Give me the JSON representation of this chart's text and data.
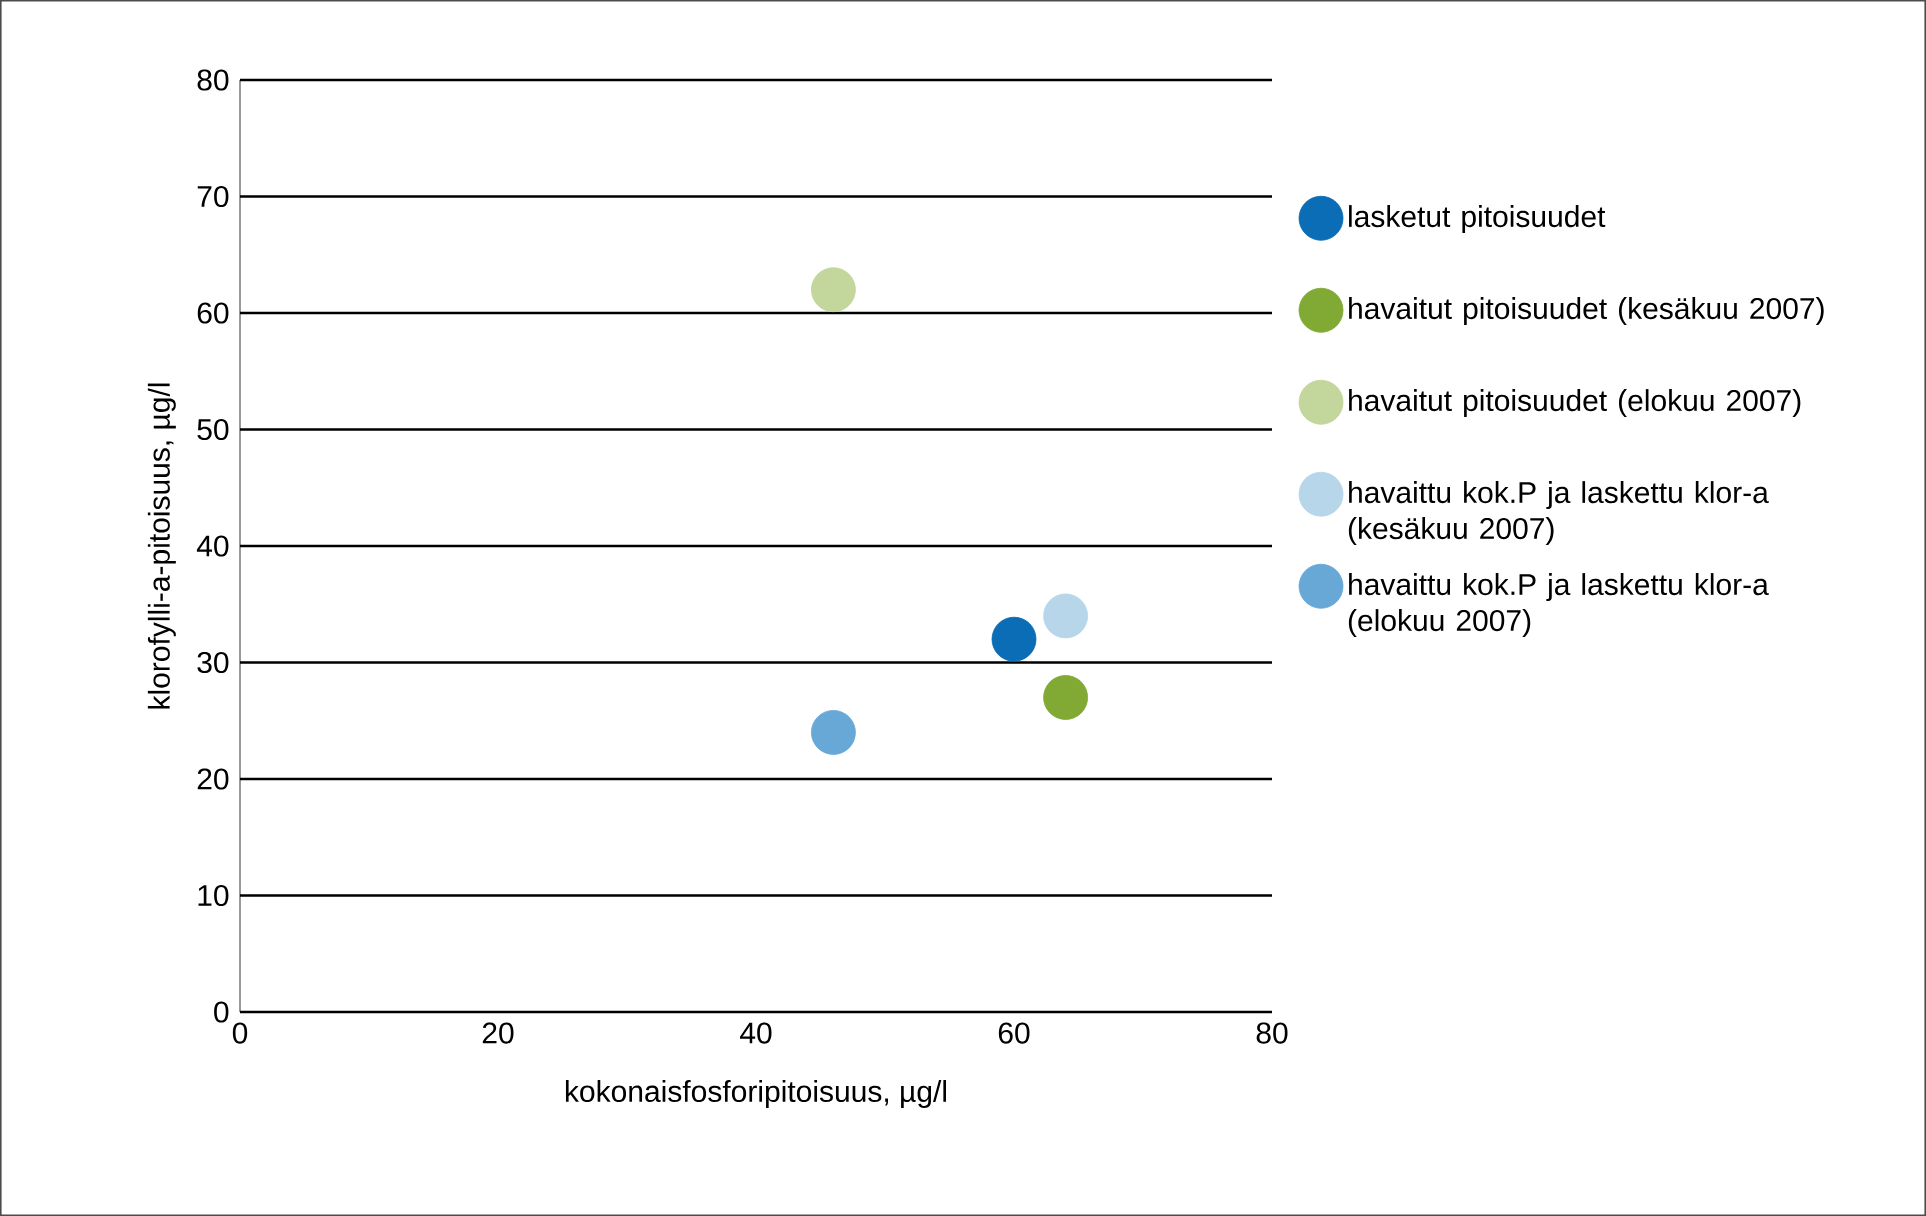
{
  "chart_data": {
    "type": "scatter",
    "xlabel": "kokonaisfosforipitoisuus, µg/l",
    "ylabel": "klorofylli-a-pitoisuus, µg/l",
    "xlim": [
      0,
      80
    ],
    "xticks": [
      0,
      20,
      40,
      60,
      80
    ],
    "ylim": [
      0,
      80
    ],
    "yticks": [
      0,
      10,
      20,
      30,
      40,
      50,
      60,
      70,
      80
    ],
    "grid": "y",
    "legend": "right",
    "marker": "circle",
    "series": [
      {
        "name": "lasketut pitoisuudet",
        "color": "#0a6db5",
        "x": [
          60
        ],
        "values": [
          32
        ]
      },
      {
        "name": "havaitut pitoisuudet (kesäkuu 2007)",
        "color": "#80aa33",
        "x": [
          64
        ],
        "values": [
          27
        ]
      },
      {
        "name": "havaitut pitoisuudet (elokuu 2007)",
        "color": "#c3d69b",
        "x": [
          46
        ],
        "values": [
          62
        ]
      },
      {
        "name": "havaittu kok.P ja laskettu klor-a (kesäkuu 2007)",
        "color": "#b7d6ea",
        "x": [
          64
        ],
        "values": [
          34
        ]
      },
      {
        "name": "havaittu kok.P ja laskettu klor-a (elokuu 2007)",
        "color": "#68a8d6",
        "x": [
          46
        ],
        "values": [
          24
        ]
      }
    ]
  }
}
